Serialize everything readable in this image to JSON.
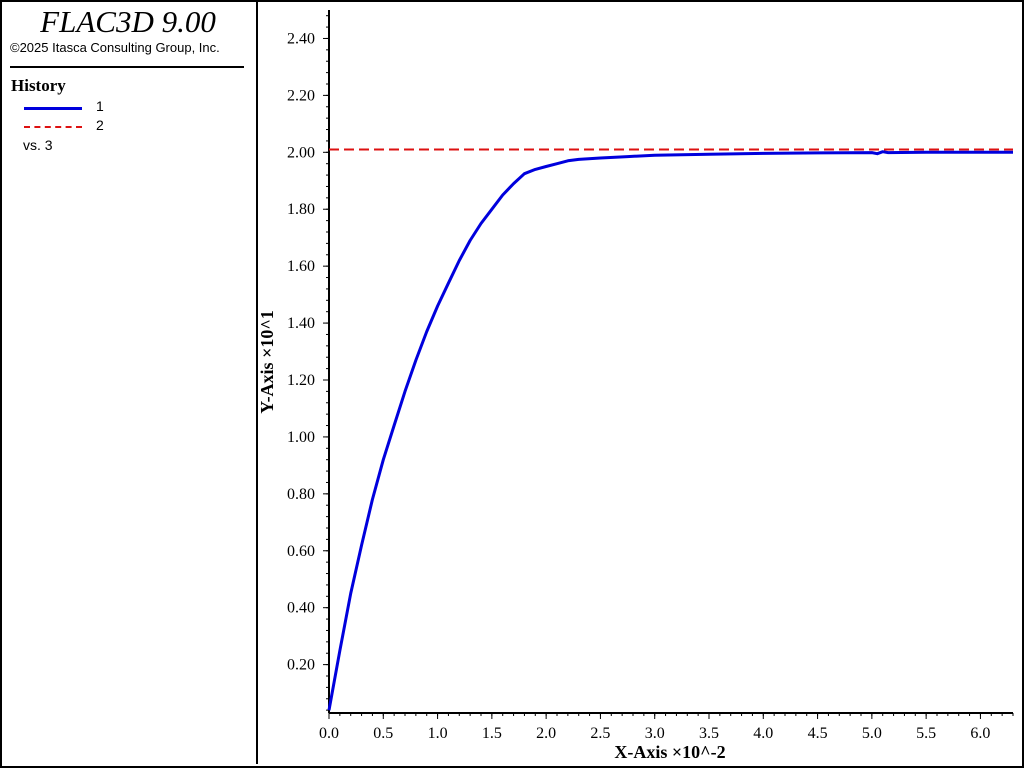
{
  "app": {
    "title": "FLAC3D 9.00",
    "copyright": "©2025 Itasca Consulting Group, Inc."
  },
  "legend": {
    "title": "History",
    "items": [
      {
        "label": "1",
        "color": "#0000dd",
        "style": "solid"
      },
      {
        "label": "2",
        "color": "#dd1111",
        "style": "dashed"
      }
    ],
    "vs_label": "vs. 3"
  },
  "chart_data": {
    "type": "line",
    "xlabel": "X-Axis ×10^-2",
    "ylabel": "Y-Axis ×10^1",
    "xlim": [
      0,
      6.3
    ],
    "ylim": [
      0.03,
      2.5
    ],
    "xticks": [
      "0.0",
      "0.5",
      "1.0",
      "1.5",
      "2.0",
      "2.5",
      "3.0",
      "3.5",
      "4.0",
      "4.5",
      "5.0",
      "5.5",
      "6.0"
    ],
    "yticks": [
      "0.20",
      "0.40",
      "0.60",
      "0.80",
      "1.00",
      "1.20",
      "1.40",
      "1.60",
      "1.80",
      "2.00",
      "2.20",
      "2.40"
    ],
    "grid": false,
    "series": [
      {
        "name": "1",
        "color": "#0000dd",
        "style": "solid",
        "x": [
          0.0,
          0.1,
          0.2,
          0.3,
          0.4,
          0.5,
          0.6,
          0.7,
          0.8,
          0.9,
          1.0,
          1.1,
          1.2,
          1.3,
          1.4,
          1.5,
          1.6,
          1.7,
          1.8,
          1.9,
          2.0,
          2.1,
          2.2,
          2.3,
          2.5,
          2.75,
          3.0,
          3.5,
          4.0,
          4.5,
          5.0,
          5.05,
          5.1,
          5.15,
          5.5,
          6.0,
          6.3
        ],
        "y": [
          0.04,
          0.25,
          0.45,
          0.62,
          0.78,
          0.92,
          1.04,
          1.16,
          1.27,
          1.37,
          1.46,
          1.54,
          1.62,
          1.69,
          1.75,
          1.8,
          1.85,
          1.89,
          1.925,
          1.94,
          1.95,
          1.96,
          1.97,
          1.975,
          1.98,
          1.985,
          1.99,
          1.993,
          1.996,
          1.998,
          1.999,
          1.995,
          2.002,
          1.999,
          2.0,
          2.0,
          2.0
        ]
      },
      {
        "name": "2",
        "color": "#dd1111",
        "style": "dashed",
        "x": [
          0.0,
          6.3
        ],
        "y": [
          2.01,
          2.01
        ]
      }
    ]
  }
}
